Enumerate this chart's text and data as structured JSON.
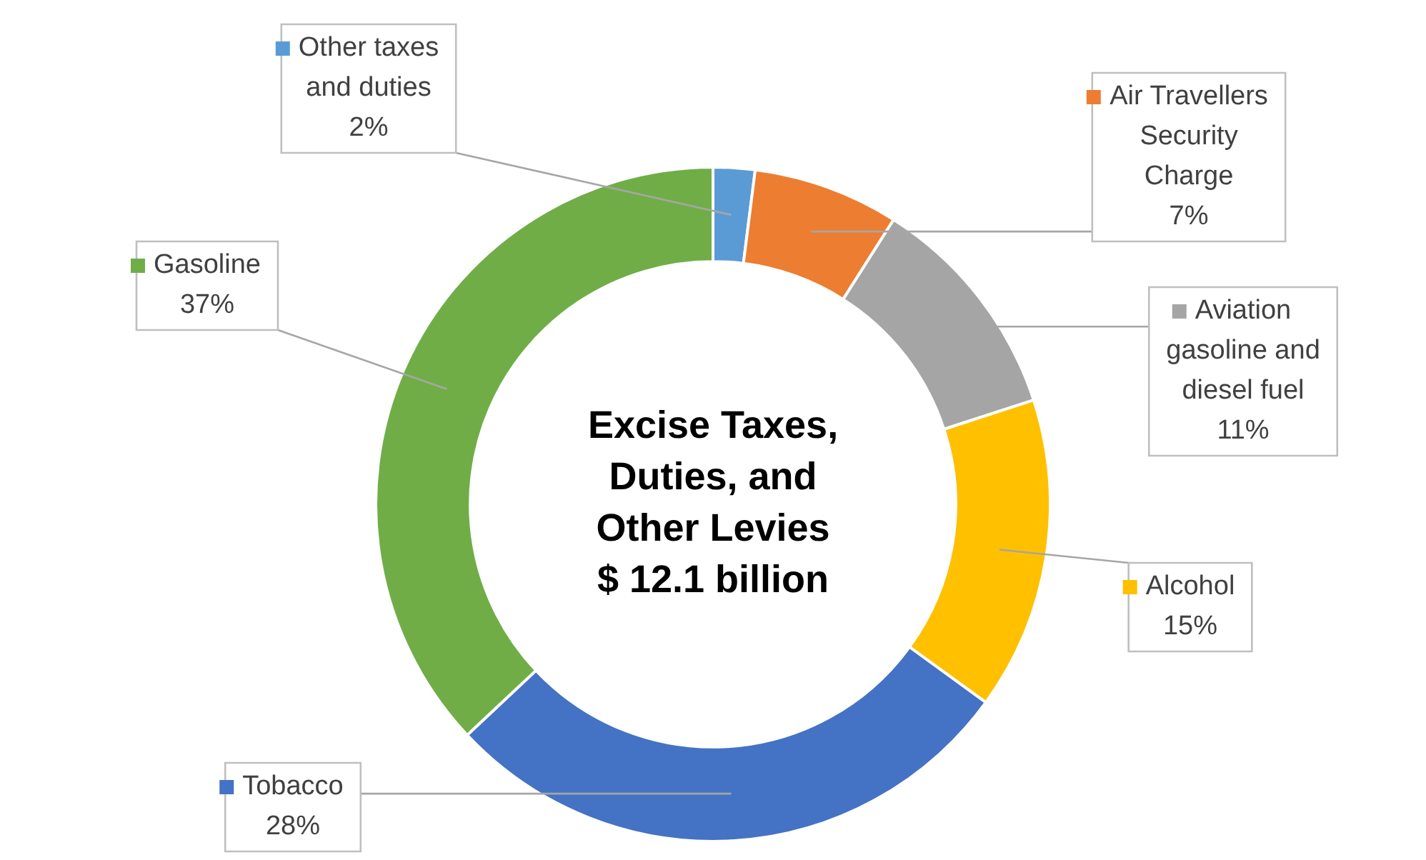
{
  "chart_data": {
    "type": "donut",
    "title": "Excise Taxes,\nDuties, and\nOther Levies\n$ 12.1 billion",
    "categories": [
      "Other taxes and duties",
      "Air Travellers Security Charge",
      "Aviation gasoline and diesel fuel",
      "Alcohol",
      "Tobacco",
      "Gasoline"
    ],
    "values": [
      2,
      7,
      11,
      15,
      28,
      37
    ],
    "value_labels": [
      "2%",
      "7%",
      "11%",
      "15%",
      "28%",
      "37%"
    ],
    "colors": [
      "#5b9bd5",
      "#ed7d31",
      "#a5a5a5",
      "#ffc000",
      "#4472c4",
      "#70ad47"
    ],
    "legend": "right"
  }
}
